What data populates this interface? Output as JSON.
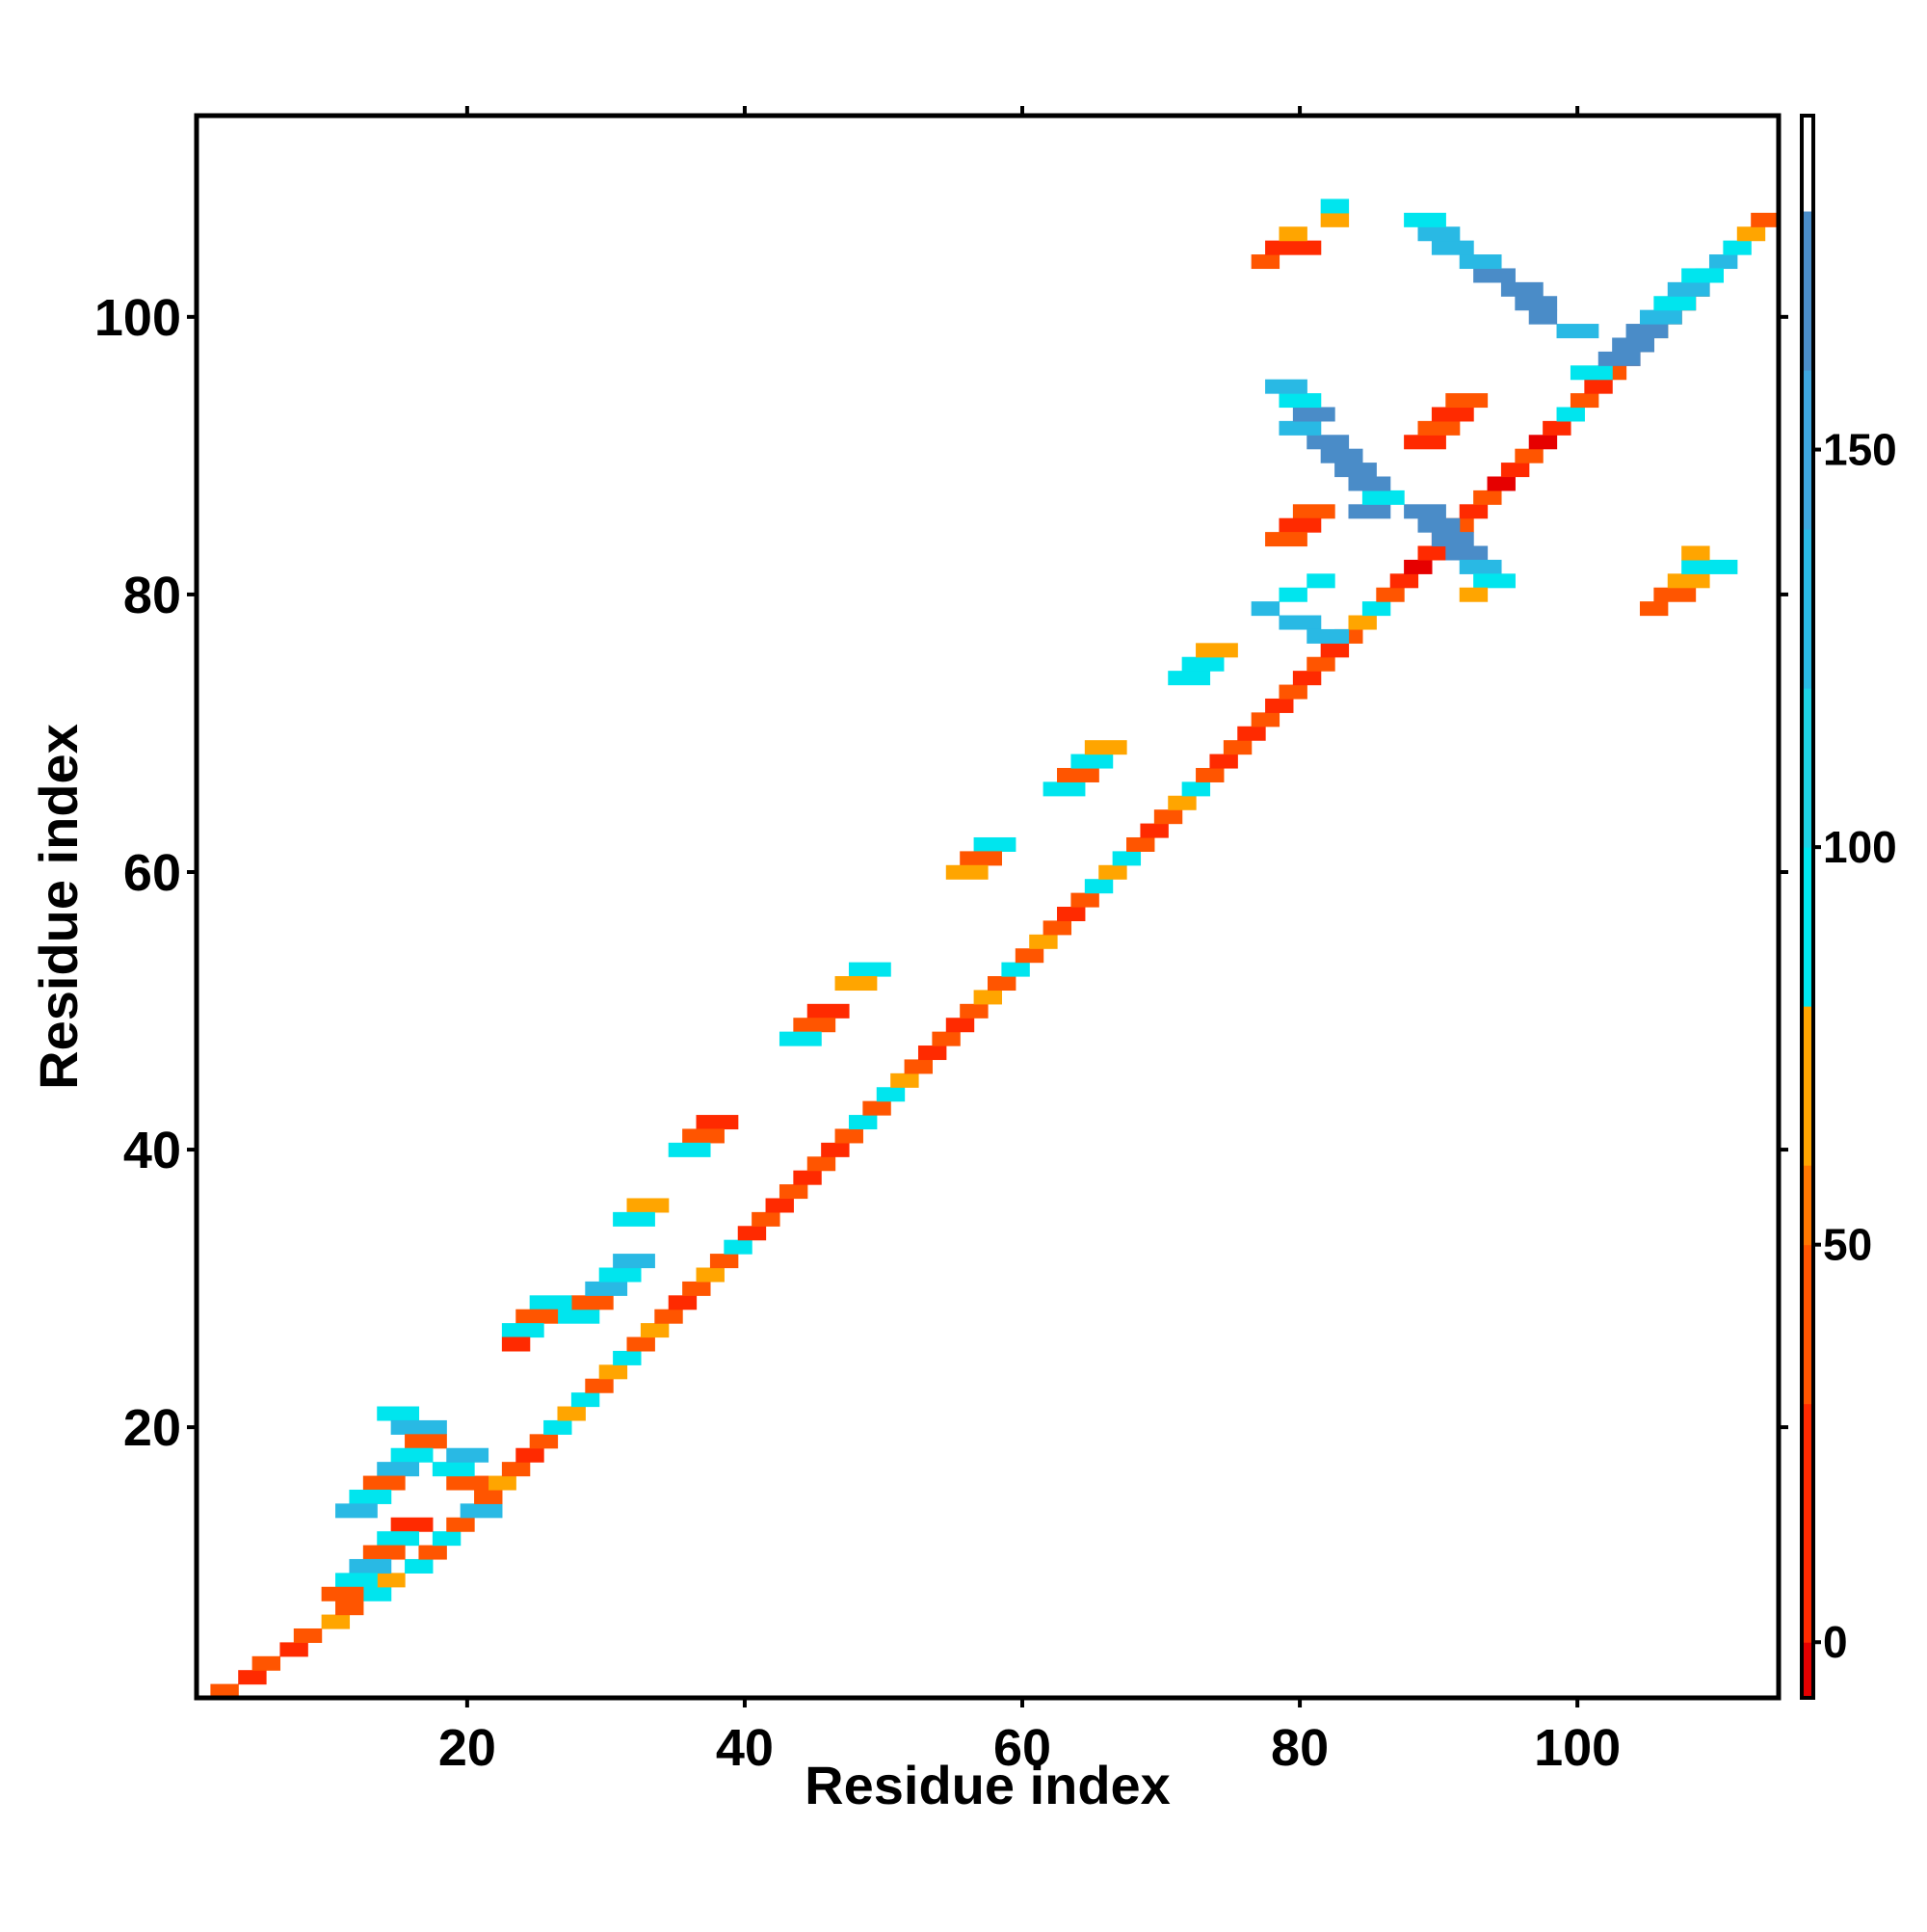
{
  "chart_data": {
    "type": "heatmap",
    "title": "",
    "xlabel": "Residue index",
    "ylabel": "Residue index",
    "xlim": [
      0.5,
      114.5
    ],
    "ylim": [
      0.5,
      114.5
    ],
    "x_ticks": [
      20,
      40,
      60,
      80,
      100
    ],
    "y_ticks": [
      20,
      40,
      60,
      80,
      100
    ],
    "colorbar": {
      "range": [
        -7,
        192
      ],
      "ticks": [
        0,
        50,
        100,
        150
      ],
      "bands": [
        {
          "from": -7,
          "to": 0,
          "color": "#e60000"
        },
        {
          "from": 0,
          "to": 30,
          "color": "#ff2a00"
        },
        {
          "from": 30,
          "to": 50,
          "color": "#ff5500"
        },
        {
          "from": 50,
          "to": 60,
          "color": "#ff7700"
        },
        {
          "from": 60,
          "to": 80,
          "color": "#ffa500"
        },
        {
          "from": 80,
          "to": 100,
          "color": "#00e5ee"
        },
        {
          "from": 100,
          "to": 120,
          "color": "#1ed2e6"
        },
        {
          "from": 120,
          "to": 140,
          "color": "#29b9e4"
        },
        {
          "from": 140,
          "to": 160,
          "color": "#3ea6df"
        },
        {
          "from": 160,
          "to": 180,
          "color": "#4a8cc8"
        },
        {
          "from": 180,
          "to": 192,
          "color": "#ffffff"
        }
      ]
    },
    "grid": false,
    "value_color_legend": {
      "1": "#e60000",
      "2": "#ff2a00",
      "3": "#ff5500",
      "4": "#ffa500",
      "5": "#00e5ee",
      "6": "#29b9e4",
      "7": "#4a8cc8"
    },
    "cell_runs": [
      [
        1,
        2,
        3,
        "3"
      ],
      [
        2,
        4,
        5,
        "2"
      ],
      [
        3,
        5,
        6,
        "3"
      ],
      [
        4,
        7,
        8,
        "2"
      ],
      [
        5,
        8,
        9,
        "3"
      ],
      [
        6,
        10,
        11,
        "4"
      ],
      [
        7,
        11,
        12,
        "3"
      ],
      [
        8,
        13,
        14,
        "5"
      ],
      [
        9,
        14,
        15,
        "4"
      ],
      [
        10,
        16,
        17,
        "5"
      ],
      [
        11,
        17,
        18,
        "3"
      ],
      [
        12,
        18,
        19,
        "5"
      ],
      [
        13,
        19,
        20,
        "3"
      ],
      [
        14,
        20,
        22,
        "6"
      ],
      [
        15,
        21,
        22,
        "3"
      ],
      [
        16,
        22,
        23,
        "4"
      ],
      [
        17,
        23,
        24,
        "3"
      ],
      [
        18,
        24,
        25,
        "2"
      ],
      [
        19,
        25,
        26,
        "3"
      ],
      [
        20,
        26,
        27,
        "5"
      ],
      [
        21,
        27,
        28,
        "4"
      ],
      [
        22,
        28,
        29,
        "5"
      ],
      [
        23,
        29,
        30,
        "3"
      ],
      [
        24,
        30,
        31,
        "4"
      ],
      [
        25,
        31,
        32,
        "5"
      ],
      [
        26,
        32,
        33,
        "3"
      ],
      [
        27,
        33,
        34,
        "4"
      ],
      [
        28,
        34,
        35,
        "3"
      ],
      [
        29,
        35,
        36,
        "2"
      ],
      [
        30,
        36,
        37,
        "3"
      ],
      [
        31,
        37,
        38,
        "4"
      ],
      [
        32,
        38,
        39,
        "3"
      ],
      [
        33,
        39,
        40,
        "5"
      ],
      [
        34,
        40,
        41,
        "2"
      ],
      [
        35,
        41,
        42,
        "3"
      ],
      [
        36,
        42,
        43,
        "2"
      ],
      [
        37,
        43,
        44,
        "3"
      ],
      [
        38,
        44,
        45,
        "2"
      ],
      [
        39,
        45,
        46,
        "3"
      ],
      [
        40,
        46,
        47,
        "2"
      ],
      [
        41,
        47,
        48,
        "3"
      ],
      [
        42,
        48,
        49,
        "5"
      ],
      [
        43,
        49,
        50,
        "3"
      ],
      [
        44,
        50,
        51,
        "5"
      ],
      [
        45,
        51,
        52,
        "4"
      ],
      [
        46,
        52,
        53,
        "3"
      ],
      [
        47,
        53,
        54,
        "2"
      ],
      [
        48,
        54,
        55,
        "3"
      ],
      [
        49,
        55,
        56,
        "2"
      ],
      [
        50,
        56,
        57,
        "3"
      ],
      [
        51,
        57,
        58,
        "4"
      ],
      [
        52,
        58,
        59,
        "3"
      ],
      [
        53,
        59,
        60,
        "5"
      ],
      [
        54,
        60,
        61,
        "3"
      ],
      [
        55,
        61,
        62,
        "4"
      ],
      [
        56,
        62,
        63,
        "3"
      ],
      [
        57,
        63,
        64,
        "2"
      ],
      [
        58,
        64,
        65,
        "3"
      ],
      [
        59,
        65,
        66,
        "5"
      ],
      [
        60,
        66,
        67,
        "4"
      ],
      [
        61,
        67,
        68,
        "5"
      ],
      [
        62,
        68,
        69,
        "3"
      ],
      [
        63,
        69,
        70,
        "2"
      ],
      [
        64,
        70,
        71,
        "3"
      ],
      [
        65,
        71,
        72,
        "4"
      ],
      [
        66,
        72,
        73,
        "5"
      ],
      [
        67,
        73,
        74,
        "3"
      ],
      [
        68,
        74,
        75,
        "2"
      ],
      [
        69,
        75,
        76,
        "3"
      ],
      [
        70,
        76,
        77,
        "2"
      ],
      [
        71,
        77,
        78,
        "3"
      ],
      [
        72,
        78,
        79,
        "2"
      ],
      [
        73,
        79,
        80,
        "3"
      ],
      [
        74,
        80,
        81,
        "2"
      ],
      [
        75,
        81,
        82,
        "3"
      ],
      [
        76,
        82,
        83,
        "2"
      ],
      [
        77,
        83,
        84,
        "3"
      ],
      [
        78,
        84,
        85,
        "4"
      ],
      [
        79,
        85,
        86,
        "5"
      ],
      [
        80,
        86,
        87,
        "3"
      ],
      [
        81,
        87,
        88,
        "2"
      ],
      [
        82,
        88,
        89,
        "1"
      ],
      [
        83,
        89,
        90,
        "2"
      ],
      [
        84,
        90,
        91,
        "1"
      ],
      [
        85,
        91,
        92,
        "3"
      ],
      [
        86,
        92,
        93,
        "2"
      ],
      [
        87,
        93,
        94,
        "3"
      ],
      [
        88,
        94,
        95,
        "1"
      ],
      [
        89,
        95,
        96,
        "2"
      ],
      [
        90,
        96,
        97,
        "3"
      ],
      [
        91,
        97,
        98,
        "1"
      ],
      [
        92,
        98,
        99,
        "2"
      ],
      [
        93,
        99,
        100,
        "5"
      ],
      [
        94,
        100,
        101,
        "3"
      ],
      [
        95,
        101,
        102,
        "2"
      ],
      [
        96,
        102,
        103,
        "3"
      ],
      [
        97,
        103,
        104,
        "2"
      ],
      [
        98,
        104,
        105,
        "3"
      ],
      [
        99,
        105,
        106,
        "4"
      ],
      [
        100,
        106,
        107,
        "2"
      ],
      [
        101,
        107,
        108,
        "1"
      ],
      [
        102,
        108,
        109,
        "3"
      ],
      [
        103,
        109,
        110,
        "5"
      ],
      [
        104,
        110,
        111,
        "6"
      ],
      [
        105,
        111,
        112,
        "5"
      ],
      [
        106,
        112,
        113,
        "4"
      ],
      [
        107,
        113,
        114,
        "3"
      ],
      [
        78,
        79,
        81,
        "6"
      ],
      [
        79,
        77,
        78,
        "6"
      ],
      [
        80,
        79,
        80,
        "5"
      ],
      [
        81,
        81,
        82,
        "5"
      ],
      [
        77,
        81,
        83,
        "6"
      ],
      [
        86,
        84,
        86,
        "7"
      ],
      [
        86,
        88,
        90,
        "7"
      ],
      [
        87,
        85,
        87,
        "5"
      ],
      [
        88,
        84,
        86,
        "7"
      ],
      [
        89,
        83,
        85,
        "7"
      ],
      [
        90,
        82,
        84,
        "7"
      ],
      [
        91,
        81,
        83,
        "7"
      ],
      [
        92,
        79,
        81,
        "6"
      ],
      [
        93,
        80,
        82,
        "7"
      ],
      [
        94,
        79,
        81,
        "5"
      ],
      [
        95,
        78,
        80,
        "6"
      ],
      [
        85,
        89,
        91,
        "7"
      ],
      [
        84,
        90,
        92,
        "7"
      ],
      [
        83,
        91,
        93,
        "7"
      ],
      [
        82,
        92,
        94,
        "6"
      ],
      [
        81,
        93,
        95,
        "5"
      ],
      [
        80,
        92,
        93,
        "4"
      ],
      [
        96,
        100,
        102,
        "5"
      ],
      [
        97,
        102,
        104,
        "7"
      ],
      [
        98,
        103,
        105,
        "7"
      ],
      [
        99,
        104,
        106,
        "7"
      ],
      [
        100,
        105,
        107,
        "6"
      ],
      [
        101,
        106,
        108,
        "5"
      ],
      [
        102,
        107,
        109,
        "6"
      ],
      [
        103,
        108,
        110,
        "5"
      ],
      [
        99,
        99,
        101,
        "6"
      ],
      [
        100,
        97,
        98,
        "7"
      ],
      [
        101,
        96,
        98,
        "7"
      ],
      [
        102,
        95,
        97,
        "7"
      ],
      [
        103,
        93,
        95,
        "7"
      ],
      [
        104,
        92,
        94,
        "6"
      ],
      [
        105,
        90,
        92,
        "6"
      ],
      [
        106,
        89,
        91,
        "6"
      ],
      [
        107,
        88,
        90,
        "5"
      ],
      [
        104,
        77,
        78,
        "3"
      ],
      [
        105,
        78,
        81,
        "2"
      ],
      [
        106,
        79,
        80,
        "4"
      ],
      [
        107,
        82,
        83,
        "4"
      ],
      [
        108,
        82,
        83,
        "5"
      ],
      [
        79,
        105,
        106,
        "3"
      ],
      [
        80,
        106,
        108,
        "3"
      ],
      [
        81,
        107,
        109,
        "4"
      ],
      [
        82,
        108,
        111,
        "5"
      ],
      [
        83,
        108,
        109,
        "4"
      ],
      [
        21,
        14,
        16,
        "5"
      ],
      [
        20,
        15,
        18,
        "6"
      ],
      [
        19,
        16,
        18,
        "3"
      ],
      [
        18,
        15,
        17,
        "5"
      ],
      [
        17,
        14,
        16,
        "6"
      ],
      [
        16,
        13,
        15,
        "3"
      ],
      [
        15,
        12,
        14,
        "5"
      ],
      [
        14,
        11,
        13,
        "6"
      ],
      [
        16,
        19,
        21,
        "3"
      ],
      [
        17,
        18,
        20,
        "5"
      ],
      [
        18,
        19,
        21,
        "6"
      ],
      [
        13,
        15,
        17,
        "2"
      ],
      [
        12,
        14,
        16,
        "5"
      ],
      [
        11,
        13,
        15,
        "3"
      ],
      [
        10,
        12,
        14,
        "6"
      ],
      [
        9,
        11,
        13,
        "5"
      ],
      [
        8,
        10,
        12,
        "3"
      ],
      [
        28,
        27,
        29,
        "5"
      ],
      [
        29,
        28,
        30,
        "3"
      ],
      [
        30,
        29,
        31,
        "6"
      ],
      [
        31,
        30,
        32,
        "5"
      ],
      [
        32,
        31,
        33,
        "6"
      ],
      [
        29,
        25,
        27,
        "5"
      ],
      [
        28,
        24,
        26,
        "3"
      ],
      [
        27,
        23,
        25,
        "5"
      ],
      [
        26,
        23,
        24,
        "2"
      ],
      [
        53,
        48,
        50,
        "5"
      ],
      [
        52,
        47,
        49,
        "4"
      ],
      [
        50,
        45,
        47,
        "2"
      ],
      [
        49,
        44,
        46,
        "3"
      ],
      [
        48,
        43,
        45,
        "5"
      ],
      [
        66,
        62,
        64,
        "5"
      ],
      [
        67,
        63,
        65,
        "3"
      ],
      [
        68,
        64,
        66,
        "5"
      ],
      [
        69,
        65,
        67,
        "4"
      ],
      [
        74,
        71,
        73,
        "5"
      ],
      [
        75,
        72,
        74,
        "5"
      ],
      [
        76,
        73,
        75,
        "4"
      ],
      [
        62,
        57,
        59,
        "5"
      ],
      [
        61,
        56,
        58,
        "3"
      ],
      [
        60,
        55,
        57,
        "4"
      ],
      [
        42,
        37,
        39,
        "2"
      ],
      [
        41,
        36,
        38,
        "3"
      ],
      [
        40,
        35,
        37,
        "5"
      ],
      [
        36,
        32,
        34,
        "4"
      ],
      [
        35,
        31,
        33,
        "5"
      ],
      [
        91,
        88,
        90,
        "2"
      ],
      [
        92,
        89,
        91,
        "3"
      ],
      [
        93,
        90,
        92,
        "2"
      ],
      [
        94,
        91,
        93,
        "3"
      ],
      [
        86,
        80,
        82,
        "3"
      ],
      [
        85,
        79,
        81,
        "2"
      ],
      [
        84,
        78,
        80,
        "3"
      ]
    ]
  }
}
